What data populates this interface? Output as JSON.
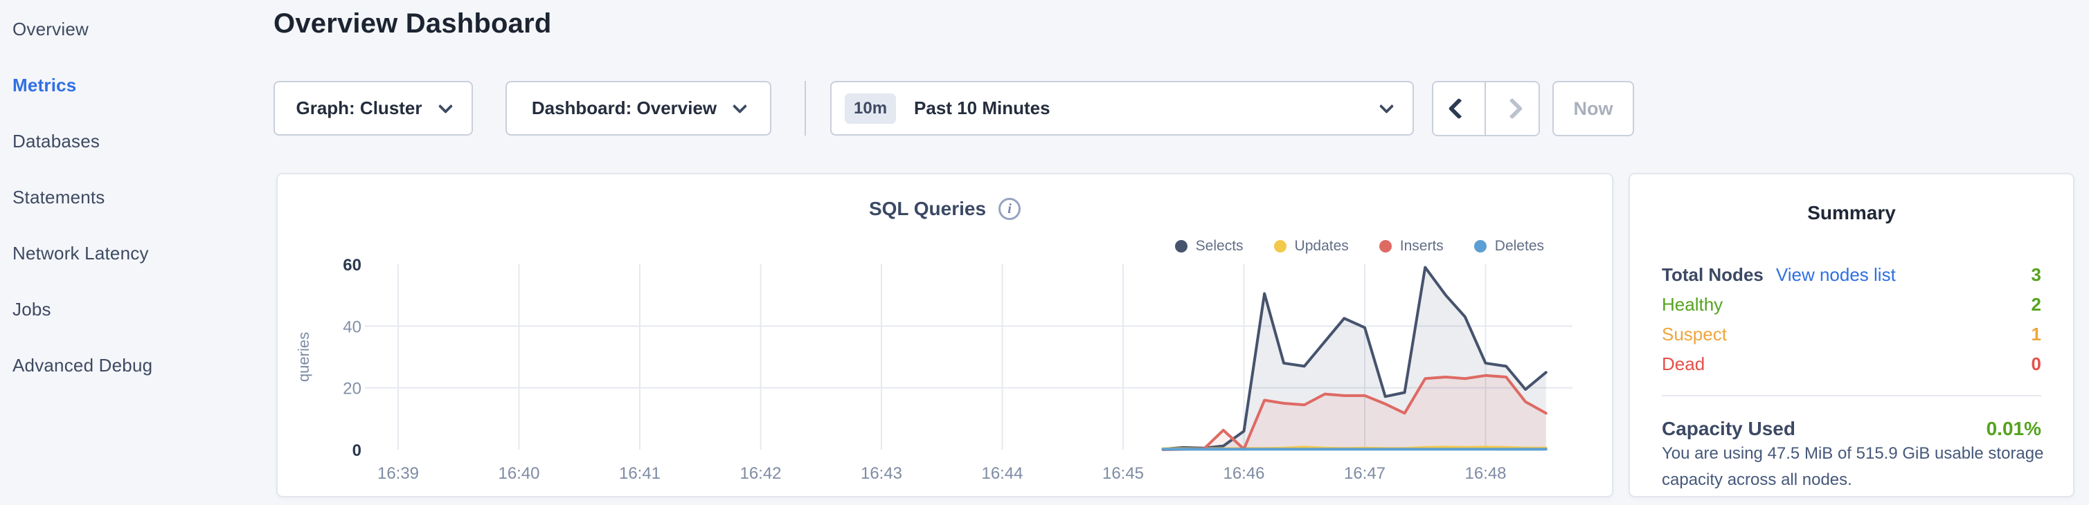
{
  "sidebar": {
    "items": [
      {
        "label": "Overview",
        "active": false
      },
      {
        "label": "Metrics",
        "active": true
      },
      {
        "label": "Databases",
        "active": false
      },
      {
        "label": "Statements",
        "active": false
      },
      {
        "label": "Network Latency",
        "active": false
      },
      {
        "label": "Jobs",
        "active": false
      },
      {
        "label": "Advanced Debug",
        "active": false
      }
    ]
  },
  "header": {
    "title": "Overview Dashboard"
  },
  "toolbar": {
    "graph_select": "Graph: Cluster",
    "dashboard_select": "Dashboard: Overview",
    "time_badge": "10m",
    "time_range": "Past 10 Minutes",
    "prev_icon": "chevron-left",
    "next_icon": "chevron-right",
    "now_label": "Now"
  },
  "chart_card": {
    "title": "SQL Queries",
    "info_icon": "i"
  },
  "chart_data": {
    "type": "area",
    "title": "SQL Queries",
    "xlabel": "",
    "ylabel": "queries",
    "ylim": [
      0,
      60
    ],
    "yticks": [
      0,
      20,
      40,
      60
    ],
    "x_tick_labels": [
      "16:39",
      "16:40",
      "16:41",
      "16:42",
      "16:43",
      "16:44",
      "16:45",
      "16:46",
      "16:47",
      "16:48"
    ],
    "x_minutes_per_tick": 1,
    "grid": true,
    "legend_position": "top-right",
    "series": [
      {
        "name": "Selects",
        "color": "#46536d",
        "fill": "rgba(70,83,109,0.10)",
        "points": [
          [
            6.33,
            0.2
          ],
          [
            6.5,
            0.7
          ],
          [
            6.67,
            0.5
          ],
          [
            6.83,
            1.2
          ],
          [
            7,
            6
          ],
          [
            7.17,
            50.5
          ],
          [
            7.33,
            28
          ],
          [
            7.5,
            27
          ],
          [
            7.67,
            35
          ],
          [
            7.83,
            42.5
          ],
          [
            8,
            39.5
          ],
          [
            8.17,
            17.2
          ],
          [
            8.33,
            18.5
          ],
          [
            8.5,
            59
          ],
          [
            8.67,
            50
          ],
          [
            8.83,
            43
          ],
          [
            9,
            28
          ],
          [
            9.17,
            27
          ],
          [
            9.33,
            19.5
          ],
          [
            9.5,
            25
          ]
        ]
      },
      {
        "name": "Updates",
        "color": "#f2c94a",
        "fill": "none",
        "points": [
          [
            6.33,
            0.3
          ],
          [
            6.5,
            0.3
          ],
          [
            6.67,
            0.3
          ],
          [
            6.83,
            0.3
          ],
          [
            7,
            0.4
          ],
          [
            7.17,
            0.4
          ],
          [
            7.33,
            0.5
          ],
          [
            7.5,
            0.8
          ],
          [
            7.67,
            0.5
          ],
          [
            7.83,
            0.4
          ],
          [
            8,
            0.5
          ],
          [
            8.17,
            0.4
          ],
          [
            8.33,
            0.4
          ],
          [
            8.5,
            0.7
          ],
          [
            8.67,
            0.8
          ],
          [
            8.83,
            0.7
          ],
          [
            9,
            0.8
          ],
          [
            9.17,
            0.7
          ],
          [
            9.33,
            0.5
          ],
          [
            9.5,
            0.5
          ]
        ]
      },
      {
        "name": "Inserts",
        "color": "#de6a64",
        "fill": "rgba(222,106,100,0.10)",
        "points": [
          [
            6.33,
            0
          ],
          [
            6.5,
            0.1
          ],
          [
            6.67,
            0.3
          ],
          [
            6.83,
            6.3
          ],
          [
            7,
            0.2
          ],
          [
            7.17,
            16
          ],
          [
            7.33,
            15
          ],
          [
            7.5,
            14.5
          ],
          [
            7.67,
            18
          ],
          [
            7.83,
            17.5
          ],
          [
            8,
            17.5
          ],
          [
            8.17,
            14.8
          ],
          [
            8.33,
            11.8
          ],
          [
            8.5,
            23
          ],
          [
            8.67,
            23.5
          ],
          [
            8.83,
            23
          ],
          [
            9,
            24
          ],
          [
            9.17,
            23.5
          ],
          [
            9.33,
            15.5
          ],
          [
            9.5,
            11.8
          ]
        ]
      },
      {
        "name": "Deletes",
        "color": "#5b9fd4",
        "fill": "none",
        "points": [
          [
            6.33,
            0.15
          ],
          [
            6.5,
            0.15
          ],
          [
            6.67,
            0.15
          ],
          [
            6.83,
            0.15
          ],
          [
            7,
            0.15
          ],
          [
            7.17,
            0.15
          ],
          [
            7.33,
            0.15
          ],
          [
            7.5,
            0.15
          ],
          [
            7.67,
            0.15
          ],
          [
            7.83,
            0.15
          ],
          [
            8,
            0.15
          ],
          [
            8.17,
            0.15
          ],
          [
            8.33,
            0.15
          ],
          [
            8.5,
            0.15
          ],
          [
            8.67,
            0.15
          ],
          [
            8.83,
            0.15
          ],
          [
            9,
            0.15
          ],
          [
            9.17,
            0.15
          ],
          [
            9.33,
            0.15
          ],
          [
            9.5,
            0.15
          ]
        ]
      }
    ]
  },
  "summary": {
    "title": "Summary",
    "rows": [
      {
        "label": "Total Nodes",
        "link": "View nodes list",
        "value": "3",
        "label_color": "#3c4964",
        "value_color": "#55a31f"
      },
      {
        "label": "Healthy",
        "link": "",
        "value": "2",
        "label_color": "#55a31f",
        "value_color": "#55a31f"
      },
      {
        "label": "Suspect",
        "link": "",
        "value": "1",
        "label_color": "#efa53c",
        "value_color": "#efa53c"
      },
      {
        "label": "Dead",
        "link": "",
        "value": "0",
        "label_color": "#e5504a",
        "value_color": "#e5504a"
      }
    ],
    "capacity_label": "Capacity Used",
    "capacity_value": "0.01%",
    "capacity_desc": "You are using 47.5 MiB of 515.9 GiB usable storage capacity across all nodes."
  },
  "colors": {
    "background": "#f4f6fa",
    "card_border": "#e2e6ed",
    "accent_blue": "#2f6fe3",
    "healthy_green": "#55a31f",
    "suspect_orange": "#efa53c",
    "dead_red": "#e5504a",
    "axis_text": "#7e8ba3",
    "grid_line": "#e5e9ef"
  }
}
